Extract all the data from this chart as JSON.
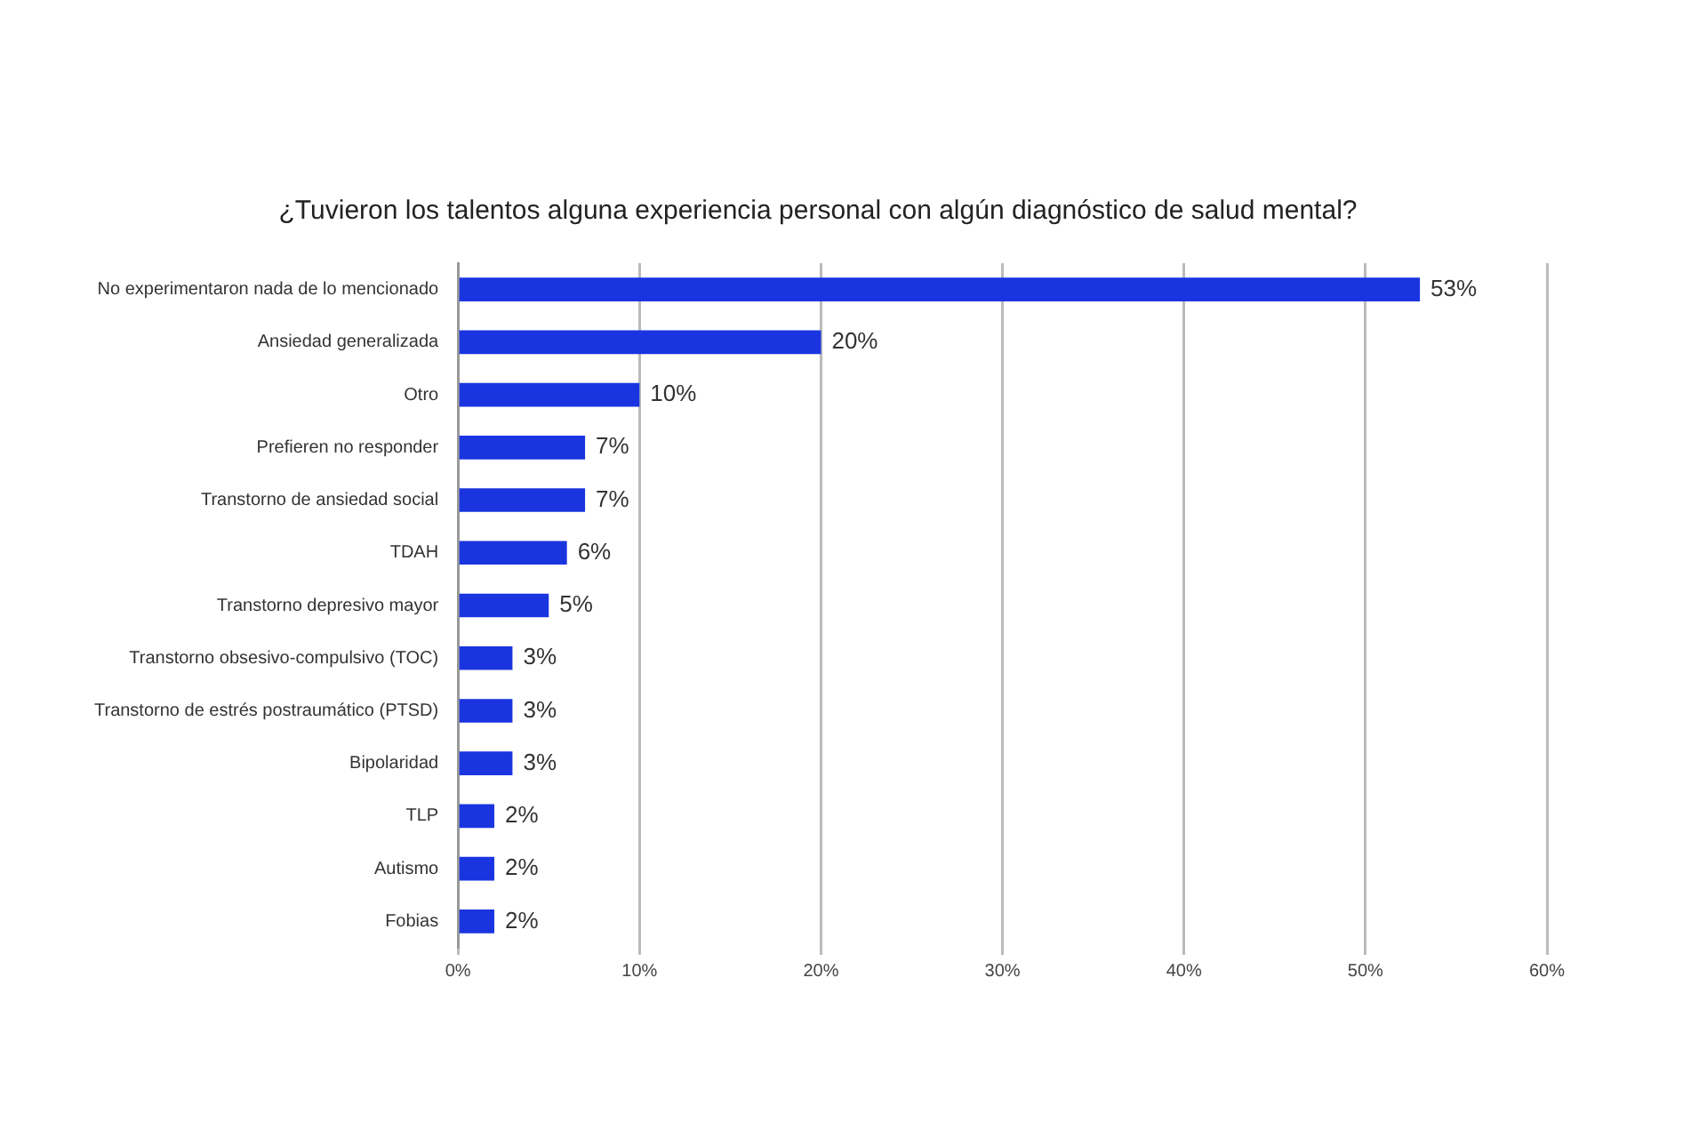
{
  "chart_data": {
    "type": "bar",
    "orientation": "horizontal",
    "title": "¿Tuvieron los talentos alguna experiencia personal con algún diagnóstico de salud mental?",
    "categories": [
      "No experimentaron nada de lo mencionado",
      "Ansiedad generalizada",
      "Otro",
      "Prefieren no responder",
      "Transtorno de ansiedad social",
      "TDAH",
      "Transtorno depresivo mayor",
      "Transtorno obsesivo-compulsivo (TOC)",
      "Transtorno de estrés postraumático (PTSD)",
      "Bipolaridad",
      "TLP",
      "Autismo",
      "Fobias"
    ],
    "values": [
      53,
      20,
      10,
      7,
      7,
      6,
      5,
      3,
      3,
      3,
      2,
      2,
      2
    ],
    "value_labels": [
      "53%",
      "20%",
      "10%",
      "7%",
      "7%",
      "6%",
      "5%",
      "3%",
      "3%",
      "3%",
      "2%",
      "2%",
      "2%"
    ],
    "color": "#1a35e0",
    "xlim": [
      0,
      60
    ],
    "xticks": [
      {
        "value": 0,
        "label": "0%"
      },
      {
        "value": 10,
        "label": "10%"
      },
      {
        "value": 20,
        "label": "20%"
      },
      {
        "value": 30,
        "label": "30%"
      },
      {
        "value": 40,
        "label": "40%"
      },
      {
        "value": 50,
        "label": "50%"
      },
      {
        "value": 60,
        "label": "60%"
      }
    ],
    "grid": "x",
    "legend": false
  }
}
